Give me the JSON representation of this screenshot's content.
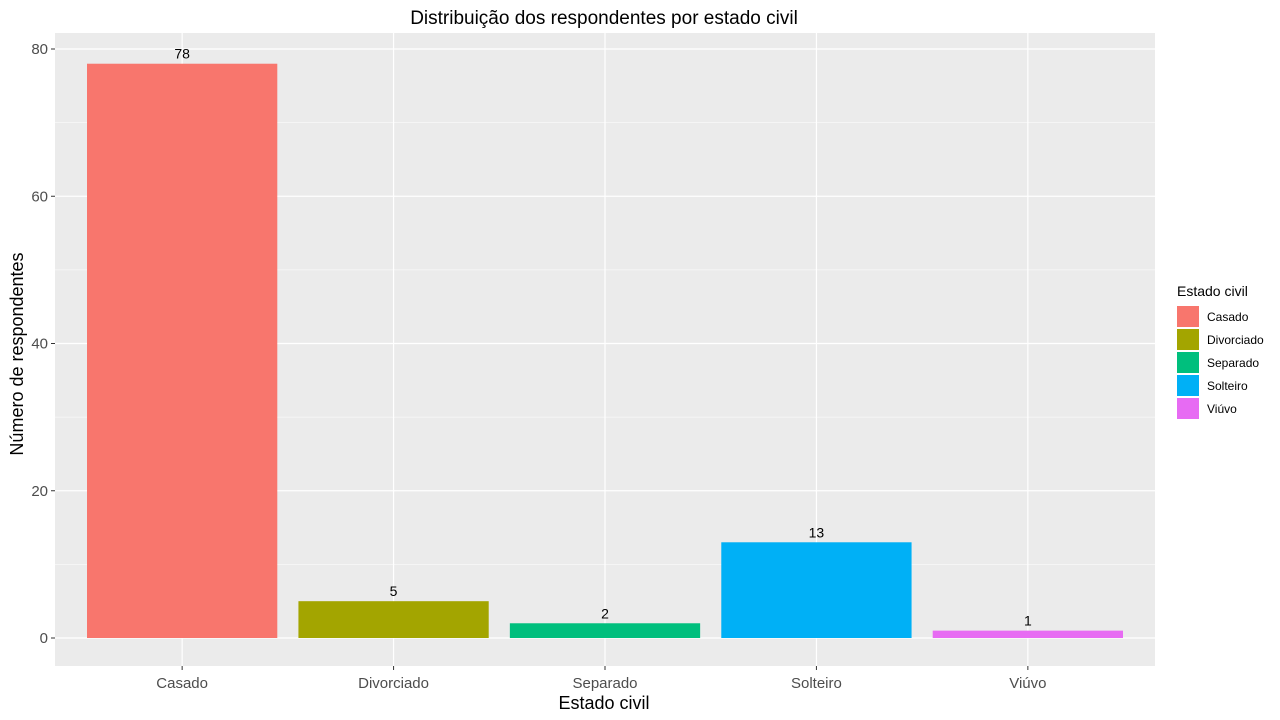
{
  "chart_data": {
    "type": "bar",
    "title": "Distribuição dos respondentes por estado civil",
    "xlabel": "Estado civil",
    "ylabel": "Número de respondentes",
    "categories": [
      "Casado",
      "Divorciado",
      "Separado",
      "Solteiro",
      "Viúvo"
    ],
    "values": [
      78,
      5,
      2,
      13,
      1
    ],
    "data_labels": [
      "78",
      "5",
      "2",
      "13",
      "1"
    ],
    "colors": [
      "#F8766D",
      "#A3A500",
      "#00BF7D",
      "#00B0F6",
      "#E76BF3"
    ],
    "ylim": [
      0,
      83.9
    ],
    "yticks": [
      0,
      20,
      40,
      60,
      80
    ],
    "ytick_labels": [
      "0",
      "20",
      "40",
      "60",
      "80"
    ],
    "grid": true,
    "panel_background": "#EBEBEB",
    "legend": {
      "title": "Estado civil",
      "placement": "right",
      "entries": [
        "Casado",
        "Divorciado",
        "Separado",
        "Solteiro",
        "Viúvo"
      ]
    }
  }
}
